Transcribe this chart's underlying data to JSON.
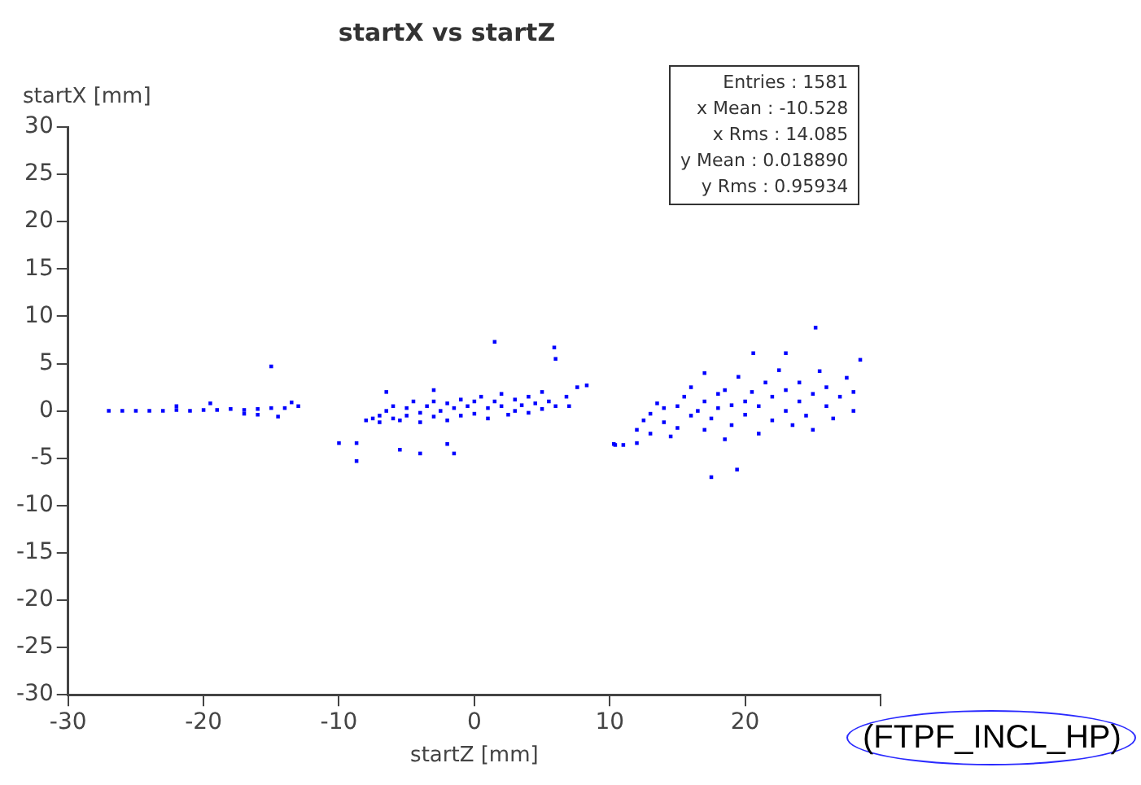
{
  "chart_data": {
    "type": "scatter",
    "title": "startX vs startZ",
    "xlabel": "startZ [mm]",
    "ylabel": "startX [mm]",
    "xlim": [
      -30,
      30
    ],
    "xticks": [
      -30,
      -20,
      -10,
      0,
      10,
      20,
      {
        "value": 30,
        "label": null
      }
    ],
    "ylim": [
      -30,
      30
    ],
    "yticks": [
      -30,
      -25,
      -20,
      -15,
      -10,
      -5,
      0,
      5,
      10,
      15,
      20,
      25,
      30
    ],
    "grid": false,
    "legend": false,
    "marker": "square",
    "annotations": [
      "Entries : 1581",
      "x Mean : -10.528",
      "x Rms : 14.085",
      "y Mean : 0.018890",
      "y Rms : 0.95934",
      "(FTPF_INCL_HP)"
    ],
    "series": [
      {
        "color": "#0000ff",
        "x": [
          -27,
          -26,
          -25,
          -24,
          -23,
          -22,
          -21,
          -20,
          -19,
          -18,
          -17,
          -16,
          -15,
          -14,
          -13,
          -22,
          -19.5,
          -17,
          -15,
          -14.5,
          -13.5,
          -16,
          -8,
          -7.5,
          -7,
          -7,
          -6.5,
          -6,
          -6,
          -5.5,
          -5,
          -5,
          -4.5,
          -4,
          -4,
          -3.5,
          -3,
          -3,
          -2.5,
          -2,
          -2,
          -1.5,
          -1,
          -1,
          -0.5,
          0,
          0,
          0.5,
          1,
          1,
          1.5,
          2,
          2,
          2.5,
          3,
          3,
          3.5,
          4,
          4,
          4.5,
          5,
          5,
          5.5,
          6,
          -6.5,
          -3,
          -10,
          -8.7,
          -8.7,
          1.5,
          5.9,
          6,
          -4,
          -2,
          -5.5,
          -1.5,
          7.6,
          8.3,
          10.3,
          6.8,
          7,
          11,
          12,
          12,
          12.5,
          13,
          13,
          13.5,
          14,
          14,
          14.5,
          15,
          15,
          15.5,
          16,
          16,
          16.5,
          17,
          17,
          17,
          17.5,
          18,
          18,
          18.5,
          18.5,
          19,
          19,
          19.5,
          20,
          20,
          20.5,
          21,
          21,
          21.5,
          22,
          22,
          22.5,
          23,
          23,
          23.5,
          24,
          24,
          24.5,
          25,
          25,
          25.5,
          26,
          26,
          26.5,
          27,
          27.5,
          28,
          28,
          17.5,
          19.4,
          20.6,
          23,
          25.2,
          28.5,
          10.4
        ],
        "values": [
          0,
          0,
          0,
          0,
          0,
          0.1,
          0,
          0.1,
          0.1,
          0.2,
          0.1,
          0.2,
          0.3,
          0.3,
          0.5,
          0.5,
          0.8,
          -0.3,
          4.7,
          -0.6,
          0.9,
          -0.4,
          -1,
          -0.8,
          -0.5,
          -1.2,
          0,
          -0.8,
          0.5,
          -1,
          0.3,
          -0.5,
          1,
          -0.2,
          -1.2,
          0.5,
          -0.6,
          1,
          0,
          0.8,
          -1,
          0.3,
          1.2,
          -0.5,
          0.5,
          1,
          -0.3,
          1.5,
          0.3,
          -0.8,
          1,
          0.5,
          1.8,
          -0.4,
          1.2,
          0,
          0.6,
          1.5,
          -0.2,
          0.8,
          2,
          0.2,
          1,
          0.5,
          2,
          2.2,
          -3.4,
          -3.4,
          -5.3,
          7.3,
          6.7,
          5.5,
          -4.5,
          -3.5,
          -4.1,
          -4.5,
          2.5,
          2.7,
          -3.5,
          1.5,
          0.5,
          -3.6,
          -3.4,
          -2,
          -1,
          -0.3,
          -2.4,
          0.8,
          -1.2,
          0.3,
          -2.7,
          0.5,
          -1.8,
          1.5,
          -0.5,
          2.5,
          0,
          1,
          -2,
          4,
          -0.8,
          1.8,
          0.3,
          -3,
          2.2,
          0.6,
          -1.5,
          3.6,
          1,
          -0.4,
          2,
          -2.4,
          0.5,
          3,
          -1,
          1.5,
          4.3,
          0,
          2.2,
          -1.5,
          1,
          3,
          -0.5,
          1.8,
          -2,
          4.2,
          0.5,
          2.5,
          -0.8,
          1.5,
          3.5,
          2,
          0,
          -7,
          -6.2,
          6.1,
          6.1,
          8.8,
          5.4,
          -3.6
        ]
      }
    ]
  }
}
